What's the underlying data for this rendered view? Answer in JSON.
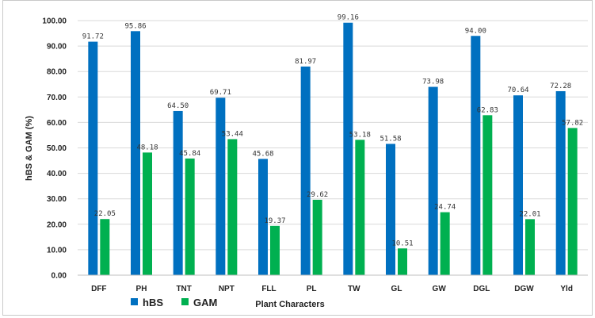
{
  "chart_data": {
    "type": "bar",
    "categories": [
      "DFF",
      "PH",
      "TNT",
      "NPT",
      "FLL",
      "PL",
      "TW",
      "GL",
      "GW",
      "DGL",
      "DGW",
      "Yld"
    ],
    "series": [
      {
        "name": "hBS",
        "color": "#0070c0",
        "values": [
          91.72,
          95.86,
          64.5,
          69.71,
          45.68,
          81.97,
          99.16,
          51.58,
          73.98,
          94.0,
          70.64,
          72.28
        ],
        "labels": [
          "91.72",
          "95.86",
          "64.50",
          "69.71",
          "45.68",
          "81.97",
          "99.16",
          "51.58",
          "73.98",
          "94.00",
          "70.64",
          "72.28"
        ]
      },
      {
        "name": "GAM",
        "color": "#00b050",
        "values": [
          22.05,
          48.18,
          45.84,
          53.44,
          19.37,
          29.62,
          53.18,
          10.51,
          24.74,
          62.83,
          22.01,
          57.82
        ],
        "labels": [
          "22.05",
          "48.18",
          "45.84",
          "53.44",
          "19.37",
          "29.62",
          "53.18",
          "10.51",
          "24.74",
          "62.83",
          "22.01",
          "57.82"
        ]
      }
    ],
    "xlabel": "Plant Characters",
    "ylabel": "hBS & GAM (%)",
    "ylim": [
      0,
      100
    ],
    "yticks": [
      "0.00",
      "10.00",
      "20.00",
      "30.00",
      "40.00",
      "50.00",
      "60.00",
      "70.00",
      "80.00",
      "90.00",
      "100.00"
    ],
    "grid": true,
    "legend": "bottom-left"
  }
}
